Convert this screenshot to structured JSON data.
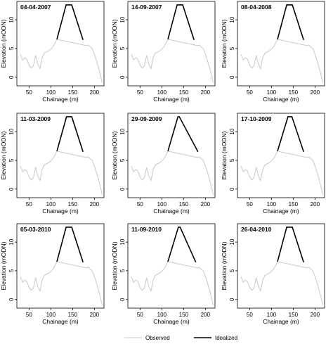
{
  "chart_data": {
    "type": "line",
    "xlabel": "Chainage (m)",
    "ylabel": "Elevation (mODN)",
    "xlim": [
      22,
      222
    ],
    "ylim": [
      -1.5,
      13.2
    ],
    "xticks": [
      50,
      100,
      150,
      200
    ],
    "yticks": [
      0,
      5,
      10
    ],
    "grid": false,
    "legend": {
      "placement": "bottom-center",
      "entries": [
        {
          "label": "Observed",
          "color": "#c8c8c8"
        },
        {
          "label": "Idealized",
          "color": "#000000"
        }
      ]
    },
    "observed": {
      "name": "Observed",
      "color": "#c8c8c8",
      "x": [
        30,
        35,
        40,
        45,
        50,
        55,
        60,
        65,
        70,
        75,
        80,
        85,
        90,
        95,
        100,
        105,
        110,
        114,
        182,
        186,
        190,
        195,
        200,
        205,
        210,
        215,
        218
      ],
      "y": [
        4.0,
        3.0,
        3.4,
        3.1,
        2.1,
        1.6,
        2.0,
        3.8,
        2.3,
        1.5,
        3.4,
        4.2,
        4.4,
        4.6,
        4.9,
        5.3,
        6.0,
        6.6,
        5.5,
        5.6,
        5.3,
        5.0,
        4.0,
        2.8,
        1.5,
        0.0,
        -1.0
      ]
    },
    "panels": [
      {
        "title": "04-04-2007",
        "idealized": {
          "x": [
            114,
            135,
            148,
            174
          ],
          "y": [
            6.6,
            12.6,
            12.6,
            6.5
          ]
        }
      },
      {
        "title": "14-09-2007",
        "idealized": {
          "x": [
            114,
            135,
            148,
            174
          ],
          "y": [
            6.6,
            12.6,
            12.6,
            6.5
          ]
        }
      },
      {
        "title": "08-04-2008",
        "idealized": {
          "x": [
            114,
            135,
            148,
            174
          ],
          "y": [
            6.6,
            12.6,
            12.6,
            6.5
          ]
        }
      },
      {
        "title": "11-03-2009",
        "idealized": {
          "x": [
            114,
            136,
            148,
            174
          ],
          "y": [
            6.6,
            12.6,
            12.6,
            6.5
          ]
        }
      },
      {
        "title": "29-09-2009",
        "idealized": {
          "x": [
            114,
            137,
            140,
            183
          ],
          "y": [
            6.6,
            12.6,
            12.6,
            6.5
          ]
        }
      },
      {
        "title": "17-10-2009",
        "idealized": {
          "x": [
            114,
            138,
            147,
            174
          ],
          "y": [
            6.6,
            12.6,
            12.6,
            6.5
          ]
        }
      },
      {
        "title": "05-03-2010",
        "idealized": {
          "x": [
            114,
            135,
            148,
            174
          ],
          "y": [
            6.6,
            12.6,
            12.6,
            6.5
          ]
        }
      },
      {
        "title": "11-09-2010",
        "idealized": {
          "x": [
            114,
            138,
            142,
            178
          ],
          "y": [
            6.6,
            12.6,
            12.6,
            6.5
          ]
        }
      },
      {
        "title": "26-04-2010",
        "idealized": {
          "x": [
            114,
            135,
            148,
            174
          ],
          "y": [
            6.6,
            12.6,
            12.6,
            6.5
          ]
        }
      }
    ]
  }
}
